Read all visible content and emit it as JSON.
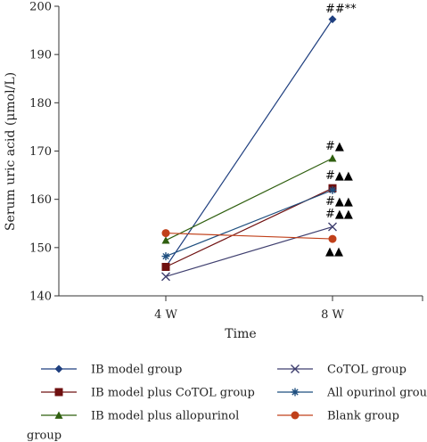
{
  "chart_data": {
    "type": "line",
    "title": "",
    "xlabel": "Time",
    "ylabel": "Serum uric acid (μmol/L)",
    "categories": [
      "4 W",
      "8 W"
    ],
    "ylim": [
      140,
      200
    ],
    "yticks": [
      140,
      150,
      160,
      170,
      180,
      190,
      200
    ],
    "grid": false,
    "legend_position": "bottom",
    "series": [
      {
        "name": "IB model group",
        "values": [
          146,
          197.3
        ],
        "color": "#1F3F7F",
        "marker": "diamond",
        "annotation": "##**"
      },
      {
        "name": "CoTOL group",
        "values": [
          144,
          154.3
        ],
        "color": "#3F3F6F",
        "marker": "x",
        "annotation": "#▲▲"
      },
      {
        "name": "IB model plus CoTOL group",
        "values": [
          146,
          162.3
        ],
        "color": "#6F1010",
        "marker": "square",
        "annotation": "#▲▲"
      },
      {
        "name": "All opurinol group",
        "values": [
          148.2,
          161.9
        ],
        "color": "#1F4F7F",
        "marker": "asterisk",
        "annotation": "#▲▲"
      },
      {
        "name": "IB model plus allopurinol group",
        "values": [
          151.5,
          168.5
        ],
        "color": "#2F5F0F",
        "marker": "triangle",
        "annotation": "#▲"
      },
      {
        "name": "Blank group",
        "values": [
          153,
          151.8
        ],
        "color": "#C0401A",
        "marker": "circle",
        "annotation": "▲▲"
      }
    ]
  }
}
